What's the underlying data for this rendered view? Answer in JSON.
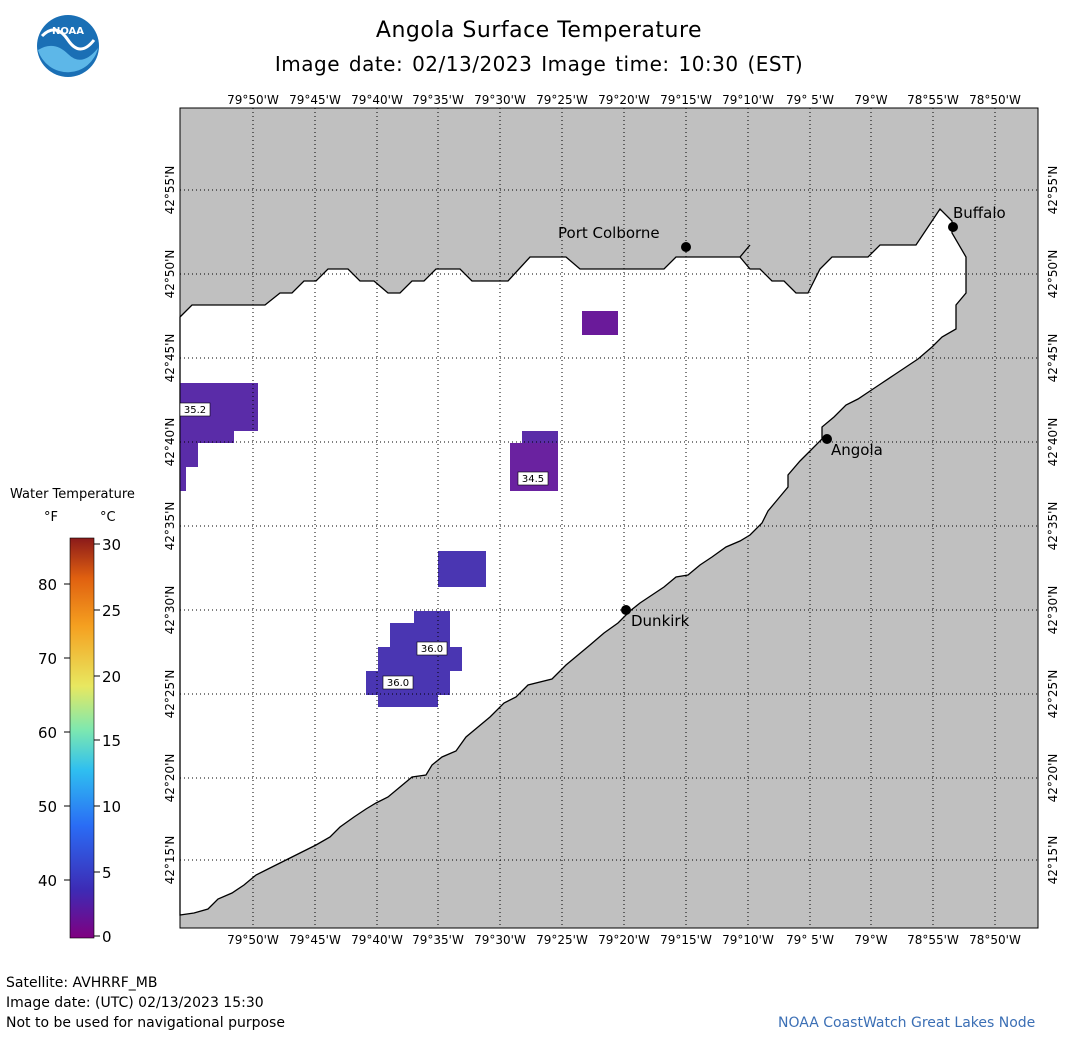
{
  "header": {
    "title": "Angola Surface Temperature",
    "subtitle": "Image date: 02/13/2023     Image time: 10:30 (EST)"
  },
  "logo": {
    "icon": "noaa-logo-icon",
    "text": "NOAA",
    "colors": [
      "#1a6fb5",
      "#5db7e8",
      "#ffffff"
    ]
  },
  "map": {
    "land_color": "#c0c0c0",
    "water_color": "#ffffff",
    "lon_labels": [
      "79°50'W",
      "79°45'W",
      "79°40'W",
      "79°35'W",
      "79°30'W",
      "79°25'W",
      "79°20'W",
      "79°15'W",
      "79°10'W",
      "79° 5'W",
      "79°W",
      "78°55'W",
      "78°50'W"
    ],
    "lat_labels": [
      "42°55'N",
      "42°50'N",
      "42°45'N",
      "42°40'N",
      "42°35'N",
      "42°30'N",
      "42°25'N",
      "42°20'N",
      "42°15'N"
    ],
    "places": [
      {
        "name": "Port Colborne",
        "icon": "city-dot-icon"
      },
      {
        "name": "Buffalo",
        "icon": "city-dot-icon"
      },
      {
        "name": "Angola",
        "icon": "city-dot-icon"
      },
      {
        "name": "Dunkirk",
        "icon": "city-dot-icon"
      }
    ],
    "temperature_labels": [
      "35.2",
      "34.5",
      "36.0",
      "36.0"
    ],
    "pixel_colors": {
      "dark_purple": "#6a1a9a",
      "indigo": "#5a2ca8",
      "blue_violet": "#4a36b2"
    }
  },
  "legend": {
    "title": "Water Temperature",
    "unit_f": "°F",
    "unit_c": "°C",
    "f_ticks": [
      "80",
      "70",
      "60",
      "50",
      "40"
    ],
    "c_ticks": [
      "30",
      "25",
      "20",
      "15",
      "10",
      "5",
      "0"
    ],
    "colors": [
      "#800080",
      "#3d2bb5",
      "#2a6cf5",
      "#2fbff0",
      "#7de8b0",
      "#e8e860",
      "#f5a020",
      "#e06010",
      "#8b1a1a"
    ]
  },
  "footer": {
    "satellite": "Satellite: AVHRRF_MB",
    "utc_date": "Image date: (UTC) 02/13/2023  15:30",
    "disclaimer": "Not to be used for navigational purpose",
    "credit": "NOAA CoastWatch Great Lakes Node",
    "credit_color": "#3b6fb5"
  }
}
